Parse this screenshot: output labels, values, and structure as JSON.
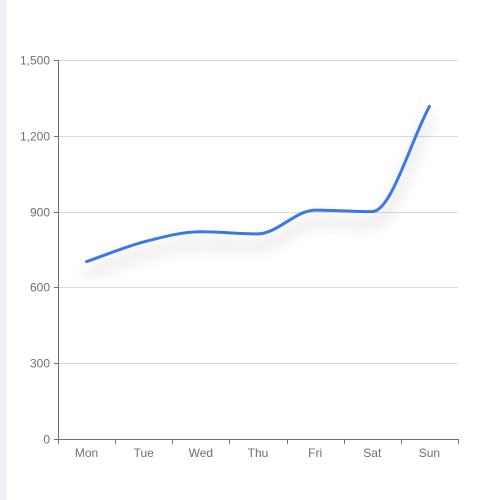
{
  "colors": {
    "line": "#3a78e7",
    "grid": "#d9d9d9",
    "axis": "#6e7079",
    "side_strip": "#eef0f6"
  },
  "chart_data": {
    "type": "line",
    "smooth": true,
    "shadow": true,
    "categories": [
      "Mon",
      "Tue",
      "Wed",
      "Thu",
      "Fri",
      "Sat",
      "Sun"
    ],
    "series": [
      {
        "values": [
          702,
          780,
          820,
          812,
          906,
          900,
          1316
        ]
      }
    ],
    "ylim": [
      0,
      1500
    ],
    "y_ticks": [
      0,
      300,
      600,
      900,
      1200,
      1500
    ],
    "y_tick_labels": [
      "0",
      "300",
      "600",
      "900",
      "1,200",
      "1,500"
    ],
    "grid": true
  }
}
